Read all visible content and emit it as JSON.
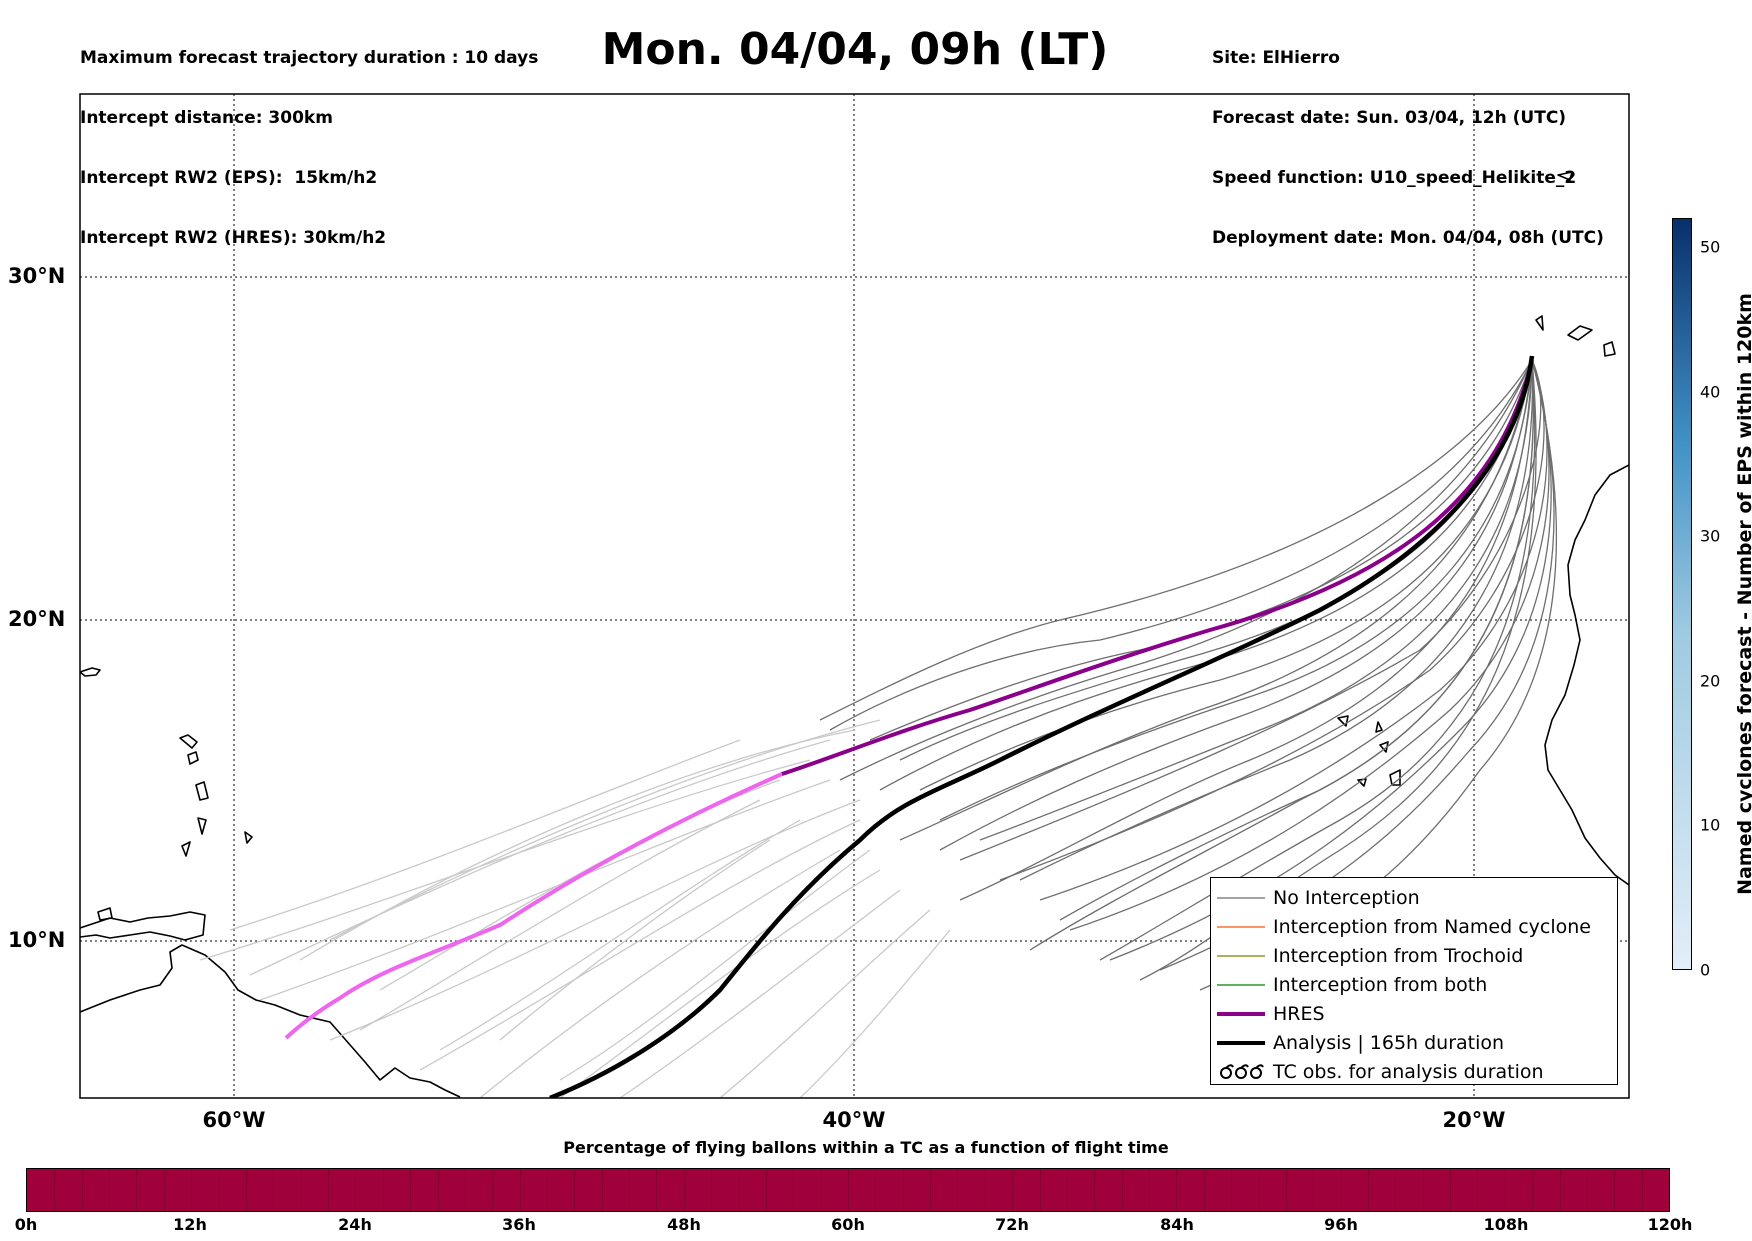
{
  "header": {
    "left": [
      "Maximum forecast trajectory duration : 10 days",
      "Intercept distance: 300km",
      "Intercept RW2 (EPS):  15km/h2",
      "Intercept RW2 (HRES): 30km/h2"
    ],
    "title": "Mon. 04/04, 09h (LT)",
    "right": [
      "Site: ElHierro",
      "Forecast date: Sun. 03/04, 12h (UTC)",
      "Speed function: U10_speed_Helikite_2",
      "Deployment date: Mon. 04/04, 08h (UTC)"
    ]
  },
  "map": {
    "lat_labels": [
      "30°N",
      "20°N",
      "10°N"
    ],
    "lon_labels": [
      "60°W",
      "40°W",
      "20°W"
    ],
    "colors": {
      "no_interception_dark": "#6e6e6e",
      "no_interception_light": "#c9c9c9",
      "hres": "#8b008b",
      "hres_early": "#ee66ee",
      "analysis": "#000000",
      "named_cyclone": "#ff5500",
      "trochoid": "#808000",
      "both": "#008000"
    }
  },
  "legend": {
    "items": [
      {
        "label": "No Interception",
        "symbol": "line",
        "color": "#6e6e6e",
        "width": 1
      },
      {
        "label": "Interception from Named cyclone",
        "symbol": "line",
        "color": "#ff5500",
        "width": 1
      },
      {
        "label": "Interception from Trochoid",
        "symbol": "line",
        "color": "#808000",
        "width": 1
      },
      {
        "label": "Interception from both",
        "symbol": "line",
        "color": "#008000",
        "width": 1
      },
      {
        "label": "HRES",
        "symbol": "line",
        "color": "#8b008b",
        "width": 4
      },
      {
        "label": "Analysis | 165h duration",
        "symbol": "line",
        "color": "#000000",
        "width": 4
      },
      {
        "label": "TC obs. for analysis duration",
        "symbol": "tc-glyph",
        "color": "#000000",
        "width": 1
      }
    ],
    "tc_symbol": "ᘐᘐᘐ"
  },
  "colorbar_vertical": {
    "label": "Named cyclones forecast - Number of EPS within 120km",
    "ticks": [
      "0",
      "10",
      "20",
      "30",
      "40",
      "50"
    ],
    "range": [
      0,
      52
    ],
    "color_low": "#e3eef9",
    "color_high": "#08306b"
  },
  "colorbar_horizontal": {
    "title": "Percentage of flying ballons within a TC as a function of flight time",
    "ticks": [
      "0h",
      "12h",
      "24h",
      "36h",
      "48h",
      "60h",
      "72h",
      "84h",
      "96h",
      "108h",
      "120h"
    ],
    "fill_color": "#a0003c"
  }
}
